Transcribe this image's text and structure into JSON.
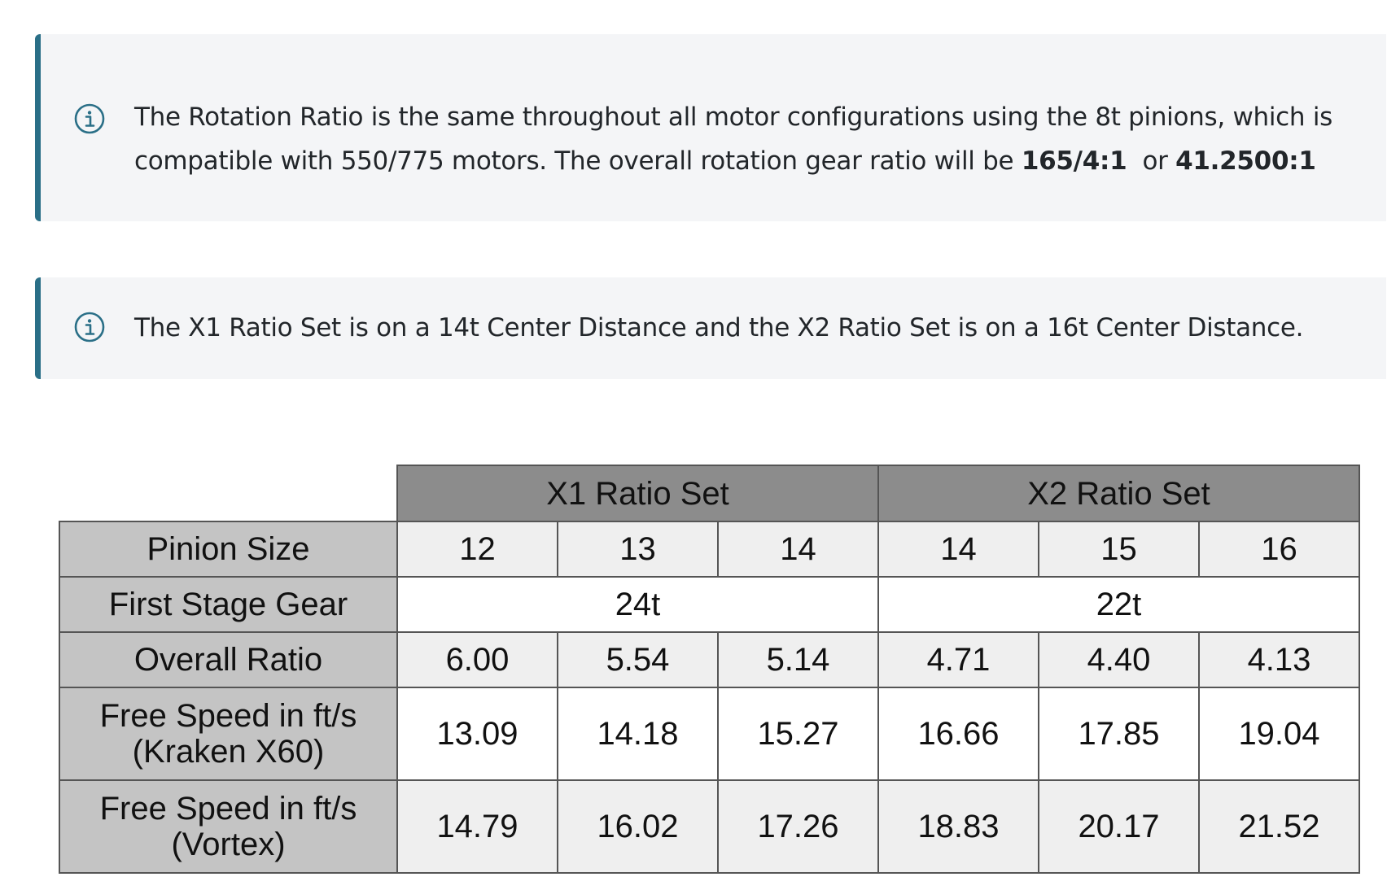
{
  "callouts": [
    {
      "icon": "info-icon",
      "text_before": "The Rotation Ratio is the same throughout all motor configurations using the 8t pinions, which is compatible with 550/775 motors. The overall rotation gear ratio will be ",
      "bold_1": "165/4:1",
      "text_middle": "  or ",
      "bold_2": "41.2500:1"
    },
    {
      "icon": "info-icon",
      "text": "The X1 Ratio Set is on a 14t Center Distance and the X2 Ratio Set is on a 16t Center Distance."
    }
  ],
  "table": {
    "groups": [
      "X1 Ratio Set",
      "X2 Ratio Set"
    ],
    "rows": {
      "pinion_size": {
        "label": "Pinion Size",
        "values": [
          "12",
          "13",
          "14",
          "14",
          "15",
          "16"
        ]
      },
      "first_stage_gear": {
        "label": "First Stage Gear",
        "values": [
          "24t",
          "22t"
        ]
      },
      "overall_ratio": {
        "label": "Overall Ratio",
        "values": [
          "6.00",
          "5.54",
          "5.14",
          "4.71",
          "4.40",
          "4.13"
        ]
      },
      "free_speed_kraken": {
        "label_line1": "Free Speed in ft/s",
        "label_line2": "(Kraken X60)",
        "values": [
          "13.09",
          "14.18",
          "15.27",
          "16.66",
          "17.85",
          "19.04"
        ]
      },
      "free_speed_vortex": {
        "label_line1": "Free Speed in ft/s",
        "label_line2": "(Vortex)",
        "values": [
          "14.79",
          "16.02",
          "17.26",
          "18.83",
          "20.17",
          "21.52"
        ]
      }
    }
  },
  "colors": {
    "callout_bg": "#f4f5f7",
    "callout_accent": "#2a6f87",
    "group_header": "#8c8c8c",
    "row_header": "#c4c4c4",
    "shaded_row": "#efefef"
  }
}
